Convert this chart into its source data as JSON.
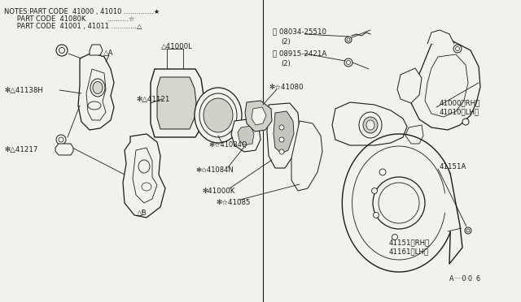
{
  "bg_color": "#f2f2ec",
  "line_color": "#1a1a1a",
  "fig_width": 6.4,
  "fig_height": 3.72,
  "dpi": 100,
  "notes": [
    "NOTES:PART CODE  41000 , 41010 ..............★",
    "      PART CODE  41080K          ..........☆",
    "      PART CODE  41001 , 41011 ............△"
  ]
}
